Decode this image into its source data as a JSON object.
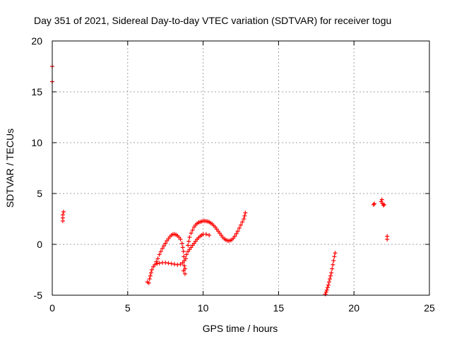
{
  "chart_data": {
    "type": "scatter",
    "title": "Day 351 of 2021, Sidereal Day-to-day VTEC variation (SDTVAR) for receiver togu",
    "xlabel": "GPS time / hours",
    "ylabel": "SDTVAR / TECUs",
    "xlim": [
      0,
      25
    ],
    "ylim": [
      -5,
      20
    ],
    "xticks": [
      0,
      5,
      10,
      15,
      20,
      25
    ],
    "yticks": [
      -5,
      0,
      5,
      10,
      15,
      20
    ],
    "grid": true,
    "marker": "+",
    "marker_color": "#ff0000",
    "series": [
      {
        "color": "#ff0000",
        "points": [
          [
            0.0,
            17.5
          ],
          [
            0.0,
            16.0
          ],
          [
            0.7,
            2.3
          ],
          [
            0.7,
            2.6
          ],
          [
            0.7,
            2.9
          ],
          [
            0.75,
            3.2
          ],
          [
            6.3,
            -3.7
          ],
          [
            6.4,
            -3.8
          ],
          [
            6.45,
            -3.4
          ],
          [
            6.5,
            -3.1
          ],
          [
            6.55,
            -2.8
          ],
          [
            6.6,
            -2.5
          ],
          [
            6.7,
            -2.2
          ],
          [
            6.8,
            -2.0
          ],
          [
            6.95,
            -1.9
          ],
          [
            7.1,
            -1.85
          ],
          [
            7.3,
            -1.8
          ],
          [
            7.5,
            -1.8
          ],
          [
            7.7,
            -1.85
          ],
          [
            7.9,
            -1.9
          ],
          [
            8.1,
            -1.95
          ],
          [
            8.3,
            -2.0
          ],
          [
            8.5,
            -1.95
          ],
          [
            8.65,
            -1.8
          ],
          [
            6.9,
            -1.7
          ],
          [
            7.0,
            -1.4
          ],
          [
            7.1,
            -1.0
          ],
          [
            7.2,
            -0.7
          ],
          [
            7.3,
            -0.4
          ],
          [
            7.4,
            -0.15
          ],
          [
            7.5,
            0.1
          ],
          [
            7.6,
            0.35
          ],
          [
            7.7,
            0.55
          ],
          [
            7.8,
            0.75
          ],
          [
            7.9,
            0.9
          ],
          [
            8.0,
            1.0
          ],
          [
            8.1,
            1.0
          ],
          [
            8.2,
            0.95
          ],
          [
            8.3,
            0.85
          ],
          [
            8.4,
            0.7
          ],
          [
            8.5,
            0.5
          ],
          [
            8.6,
            0.1
          ],
          [
            8.65,
            -0.3
          ],
          [
            8.7,
            -0.7
          ],
          [
            8.72,
            -1.2
          ],
          [
            8.75,
            -1.6
          ],
          [
            8.75,
            -2.1
          ],
          [
            8.8,
            -2.4
          ],
          [
            8.8,
            -2.9
          ],
          [
            8.7,
            -2.6
          ],
          [
            8.85,
            -1.4
          ],
          [
            8.9,
            -1.0
          ],
          [
            9.0,
            -0.7
          ],
          [
            9.1,
            -0.5
          ],
          [
            9.2,
            -0.3
          ],
          [
            9.3,
            -0.1
          ],
          [
            9.4,
            0.1
          ],
          [
            9.5,
            0.3
          ],
          [
            9.6,
            0.5
          ],
          [
            9.7,
            0.65
          ],
          [
            9.8,
            0.8
          ],
          [
            9.9,
            0.9
          ],
          [
            10.0,
            1.0
          ],
          [
            10.2,
            1.0
          ],
          [
            10.4,
            0.9
          ],
          [
            9.0,
            -0.1
          ],
          [
            9.05,
            0.3
          ],
          [
            9.1,
            0.7
          ],
          [
            9.2,
            1.1
          ],
          [
            9.3,
            1.4
          ],
          [
            9.4,
            1.7
          ],
          [
            9.5,
            1.9
          ],
          [
            9.6,
            2.05
          ],
          [
            9.7,
            2.15
          ],
          [
            9.8,
            2.2
          ],
          [
            9.9,
            2.25
          ],
          [
            10.0,
            2.3
          ],
          [
            10.1,
            2.3
          ],
          [
            10.2,
            2.28
          ],
          [
            10.3,
            2.25
          ],
          [
            10.4,
            2.2
          ],
          [
            10.5,
            2.1
          ],
          [
            10.6,
            2.0
          ],
          [
            10.7,
            1.85
          ],
          [
            10.8,
            1.7
          ],
          [
            10.9,
            1.5
          ],
          [
            11.0,
            1.3
          ],
          [
            11.1,
            1.1
          ],
          [
            11.2,
            0.9
          ],
          [
            11.3,
            0.7
          ],
          [
            11.4,
            0.55
          ],
          [
            11.5,
            0.45
          ],
          [
            11.6,
            0.38
          ],
          [
            11.7,
            0.35
          ],
          [
            11.8,
            0.38
          ],
          [
            11.9,
            0.45
          ],
          [
            12.0,
            0.6
          ],
          [
            12.1,
            0.8
          ],
          [
            12.2,
            1.05
          ],
          [
            12.3,
            1.3
          ],
          [
            12.4,
            1.6
          ],
          [
            12.5,
            1.9
          ],
          [
            12.6,
            2.2
          ],
          [
            12.7,
            2.5
          ],
          [
            12.75,
            2.8
          ],
          [
            12.8,
            3.1
          ],
          [
            18.1,
            -4.9
          ],
          [
            18.15,
            -4.7
          ],
          [
            18.2,
            -4.5
          ],
          [
            18.25,
            -4.25
          ],
          [
            18.3,
            -4.0
          ],
          [
            18.35,
            -3.7
          ],
          [
            18.4,
            -3.4
          ],
          [
            18.45,
            -3.1
          ],
          [
            18.5,
            -2.8
          ],
          [
            18.55,
            -2.4
          ],
          [
            18.6,
            -2.0
          ],
          [
            18.65,
            -1.6
          ],
          [
            18.7,
            -1.2
          ],
          [
            18.75,
            -0.85
          ],
          [
            21.3,
            3.9
          ],
          [
            21.35,
            4.0
          ],
          [
            21.8,
            4.2
          ],
          [
            21.85,
            4.4
          ],
          [
            21.9,
            4.0
          ],
          [
            21.95,
            3.85
          ],
          [
            22.0,
            3.9
          ],
          [
            22.2,
            0.8
          ],
          [
            22.2,
            0.5
          ]
        ]
      }
    ]
  }
}
